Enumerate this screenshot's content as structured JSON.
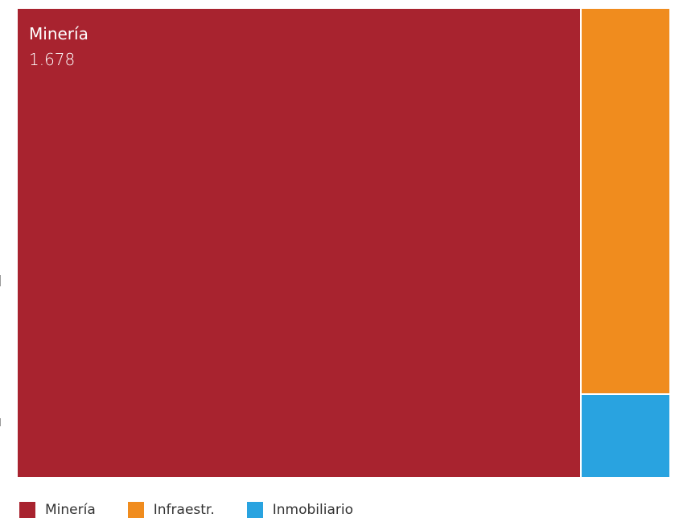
{
  "chart_data": {
    "type": "treemap",
    "items": [
      {
        "name": "Minería",
        "value": 1678,
        "value_label": "1.678",
        "color": "#a8232f",
        "label_visible": true
      },
      {
        "name": "Infraestr.",
        "value": 219,
        "color": "#f08c1e",
        "label_visible": false
      },
      {
        "name": "Inmobiliario",
        "value": 47,
        "color": "#29a3e0",
        "label_visible": false
      }
    ],
    "legend": {
      "position": "bottom-left",
      "entries": [
        "Minería",
        "Infraestr.",
        "Inmobiliario"
      ]
    }
  }
}
